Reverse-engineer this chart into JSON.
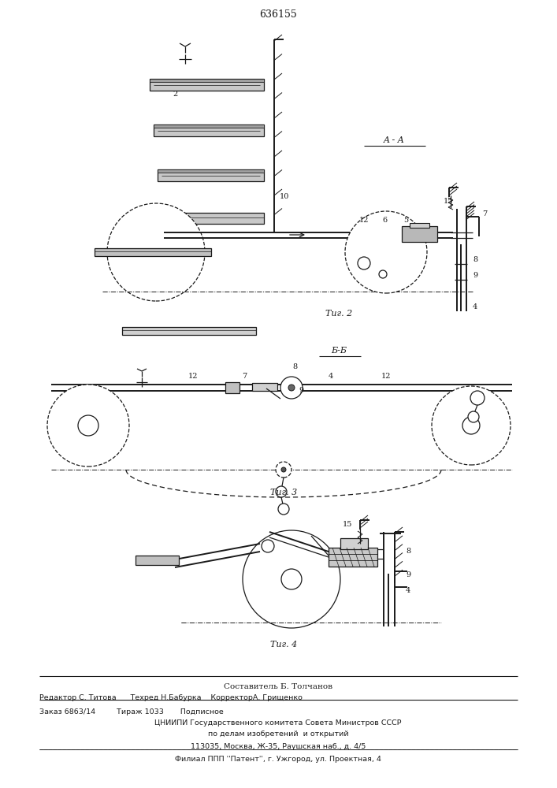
{
  "patent_number": "636155",
  "bg_color": "#ffffff",
  "line_color": "#1a1a1a",
  "fig2_label": "Τиг. 2",
  "fig3_label": "Τиг. 3",
  "fig4_label": "Τиг. 4",
  "section_aa": "A - A",
  "section_bb": "Б-Б",
  "footer_lines": [
    "Составитель Б. Толчанов",
    "Редактор С. Титова      Техред Н.Бабурка    КорректорА. Грищенко",
    "Заказ 6863/14         Тираж 1033       Подписное",
    "ЦНИИПИ Государственного комитета Совета Министров СССР",
    "по делам изобретений  и открытий",
    "113035, Москва, Ж-35, Раушская наб., д. 4/5",
    "Филиал ППП ''Патент'', г. Ужгород, ул. Проектная, 4"
  ]
}
